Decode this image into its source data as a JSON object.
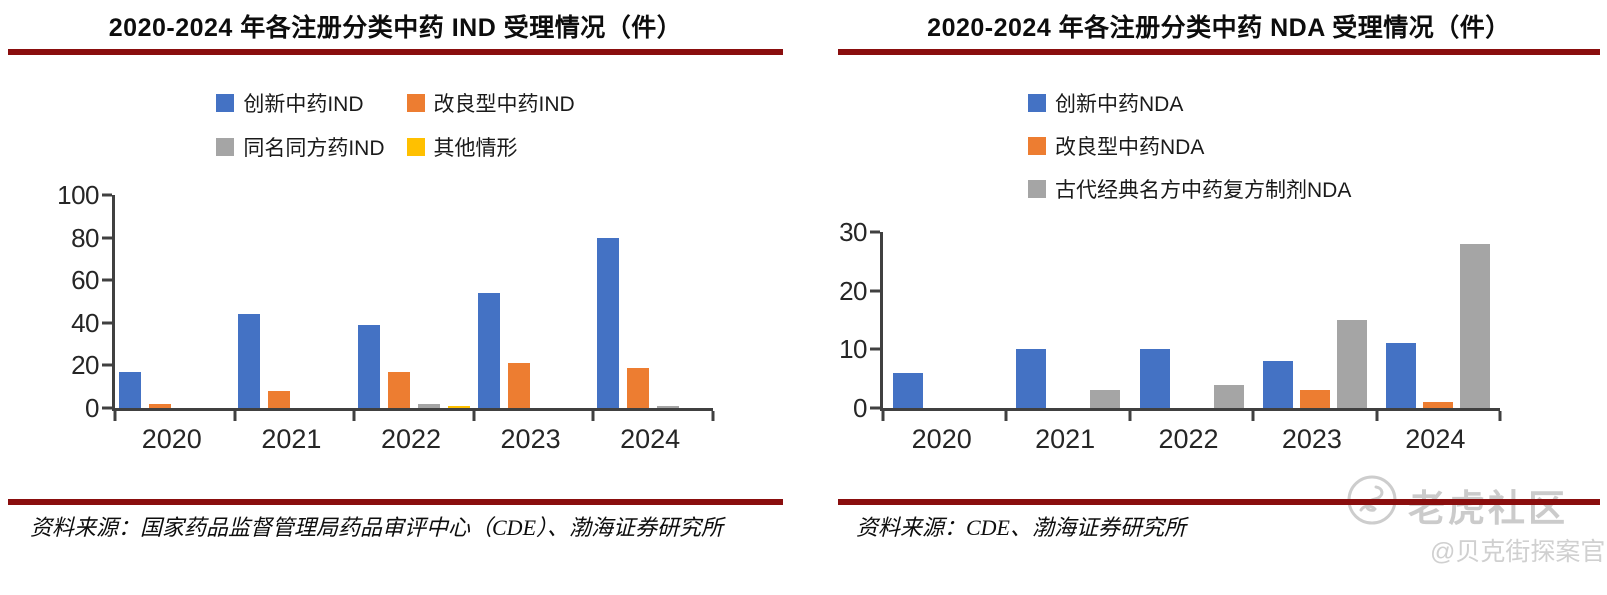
{
  "theme": {
    "separator_color": "#8a0e0e",
    "axis_color": "#404040",
    "watermark_color": "#cbcbcb"
  },
  "chart_data": [
    {
      "type": "bar",
      "title": "2020-2024 年各注册分类中药 IND 受理情况（件）",
      "categories": [
        "2020",
        "2021",
        "2022",
        "2023",
        "2024"
      ],
      "series": [
        {
          "name": "创新中药IND",
          "color": "#4472C4",
          "values": [
            17,
            44,
            39,
            54,
            80
          ]
        },
        {
          "name": "改良型中药IND",
          "color": "#ED7D31",
          "values": [
            2,
            8,
            17,
            21,
            19
          ]
        },
        {
          "name": "同名同方药IND",
          "color": "#A5A5A5",
          "values": [
            0,
            0,
            2,
            0,
            1
          ]
        },
        {
          "name": "其他情形",
          "color": "#FFC000",
          "values": [
            0,
            0,
            1,
            0,
            0
          ]
        }
      ],
      "xlabel": "",
      "ylabel": "",
      "ylim": [
        0,
        100
      ],
      "yticks": [
        0,
        20,
        40,
        60,
        80,
        100
      ],
      "grid": false,
      "legend_position": "top",
      "source": "资料来源：国家药品监督管理局药品审评中心（CDE）、渤海证券研究所"
    },
    {
      "type": "bar",
      "title": "2020-2024 年各注册分类中药 NDA 受理情况（件）",
      "categories": [
        "2020",
        "2021",
        "2022",
        "2023",
        "2024"
      ],
      "series": [
        {
          "name": "创新中药NDA",
          "color": "#4472C4",
          "values": [
            6,
            10,
            10,
            8,
            11
          ]
        },
        {
          "name": "改良型中药NDA",
          "color": "#ED7D31",
          "values": [
            0,
            0,
            0,
            3,
            1
          ]
        },
        {
          "name": "古代经典名方中药复方制剂NDA",
          "color": "#A5A5A5",
          "values": [
            0,
            3,
            4,
            15,
            28
          ]
        }
      ],
      "xlabel": "",
      "ylabel": "",
      "ylim": [
        0,
        30
      ],
      "yticks": [
        0,
        10,
        20,
        30
      ],
      "grid": false,
      "legend_position": "top",
      "source": "资料来源：CDE、渤海证券研究所"
    }
  ],
  "watermark": {
    "brand": "老虎社区",
    "handle": "@贝克街探案官",
    "logo_icon": "tiger-logo-icon"
  }
}
